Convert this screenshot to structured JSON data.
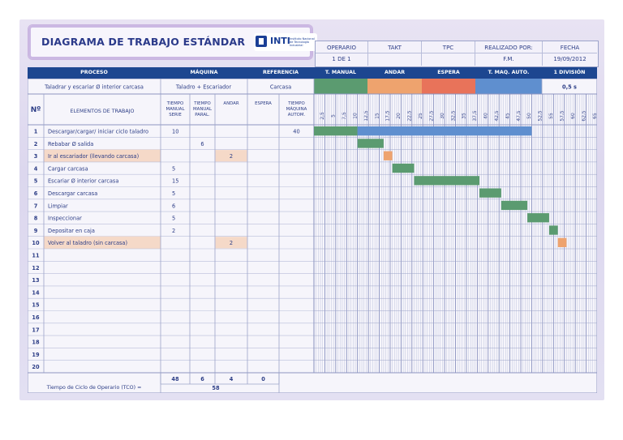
{
  "title": "DIAGRAMA DE TRABAJO ESTÁNDAR",
  "logo": {
    "name": "INTI",
    "subtitle": "Instituto Nacional de Tecnología Industrial"
  },
  "header": {
    "operario_label": "OPERARIO",
    "operario_value": "1 DE 1",
    "takt_label": "TAKT",
    "takt_value": "",
    "tpc_label": "TPC",
    "tpc_value": "",
    "realizado_label": "REALIZADO POR:",
    "realizado_value": "F.M.",
    "fecha_label": "FECHA",
    "fecha_value": "19/09/2012"
  },
  "bar": {
    "proceso": "PROCESO",
    "maquina": "MÁQUINA",
    "referencia": "REFERENCIA",
    "t_manual": "T. MANUAL",
    "andar": "ANDAR",
    "espera": "ESPERA",
    "t_maq_auto": "T. MAQ. AUTO.",
    "division": "1 DIVISIÓN"
  },
  "info": {
    "proceso_value": "Taladrar y escariar Ø interior carcasa",
    "maquina_value": "Taladro + Escariador",
    "referencia_value": "Carcasa",
    "division_value": "0,5 s"
  },
  "legend_colors": {
    "t_manual": "#5b9b70",
    "andar": "#eea36e",
    "espera": "#e8735a",
    "t_maq_auto": "#5f8fcf"
  },
  "columns": {
    "n": "Nº",
    "elementos": "ELEMENTOS DE TRABAJO",
    "tms": "TIEMPO MANUAL SERIE",
    "tmp": "TIEMPO MANUAL PARAL.",
    "andar": "ANDAR",
    "espera": "ESPERA",
    "tma": "TIEMPO MÁQUINA AUTOM."
  },
  "scale_labels": [
    "2,5",
    "5",
    "7,5",
    "10",
    "12,5",
    "15",
    "17,5",
    "20",
    "22,5",
    "25",
    "27,5",
    "30",
    "32,5",
    "35",
    "37,5",
    "40",
    "42,5",
    "45",
    "47,5",
    "50",
    "52,5",
    "55",
    "57,5",
    "60",
    "62,5",
    "65"
  ],
  "rows": [
    {
      "n": "1",
      "label": "Descargar/cargar/ iniciar ciclo taladro",
      "tms": "10",
      "tmp": "",
      "andar": "",
      "espera": "",
      "tma": "40",
      "hl": false
    },
    {
      "n": "2",
      "label": "Rebabar Ø salida",
      "tms": "",
      "tmp": "6",
      "andar": "",
      "espera": "",
      "tma": "",
      "hl": false
    },
    {
      "n": "3",
      "label": "Ir al escariador (llevando carcasa)",
      "tms": "",
      "tmp": "",
      "andar": "2",
      "espera": "",
      "tma": "",
      "hl": true
    },
    {
      "n": "4",
      "label": "Cargar carcasa",
      "tms": "5",
      "tmp": "",
      "andar": "",
      "espera": "",
      "tma": "",
      "hl": false
    },
    {
      "n": "5",
      "label": "Escariar Ø interior carcasa",
      "tms": "15",
      "tmp": "",
      "andar": "",
      "espera": "",
      "tma": "",
      "hl": false
    },
    {
      "n": "6",
      "label": "Descargar carcasa",
      "tms": "5",
      "tmp": "",
      "andar": "",
      "espera": "",
      "tma": "",
      "hl": false
    },
    {
      "n": "7",
      "label": "Limpiar",
      "tms": "6",
      "tmp": "",
      "andar": "",
      "espera": "",
      "tma": "",
      "hl": false
    },
    {
      "n": "8",
      "label": "Inspeccionar",
      "tms": "5",
      "tmp": "",
      "andar": "",
      "espera": "",
      "tma": "",
      "hl": false
    },
    {
      "n": "9",
      "label": "Depositar en caja",
      "tms": "2",
      "tmp": "",
      "andar": "",
      "espera": "",
      "tma": "",
      "hl": false
    },
    {
      "n": "10",
      "label": "Volver al taladro (sin carcasa)",
      "tms": "",
      "tmp": "",
      "andar": "2",
      "espera": "",
      "tma": "",
      "hl": true
    },
    {
      "n": "11",
      "label": "",
      "tms": "",
      "tmp": "",
      "andar": "",
      "espera": "",
      "tma": "",
      "hl": false
    },
    {
      "n": "12",
      "label": "",
      "tms": "",
      "tmp": "",
      "andar": "",
      "espera": "",
      "tma": "",
      "hl": false
    },
    {
      "n": "13",
      "label": "",
      "tms": "",
      "tmp": "",
      "andar": "",
      "espera": "",
      "tma": "",
      "hl": false
    },
    {
      "n": "14",
      "label": "",
      "tms": "",
      "tmp": "",
      "andar": "",
      "espera": "",
      "tma": "",
      "hl": false
    },
    {
      "n": "15",
      "label": "",
      "tms": "",
      "tmp": "",
      "andar": "",
      "espera": "",
      "tma": "",
      "hl": false
    },
    {
      "n": "16",
      "label": "",
      "tms": "",
      "tmp": "",
      "andar": "",
      "espera": "",
      "tma": "",
      "hl": false
    },
    {
      "n": "17",
      "label": "",
      "tms": "",
      "tmp": "",
      "andar": "",
      "espera": "",
      "tma": "",
      "hl": false
    },
    {
      "n": "18",
      "label": "",
      "tms": "",
      "tmp": "",
      "andar": "",
      "espera": "",
      "tma": "",
      "hl": false
    },
    {
      "n": "19",
      "label": "",
      "tms": "",
      "tmp": "",
      "andar": "",
      "espera": "",
      "tma": "",
      "hl": false
    },
    {
      "n": "20",
      "label": "",
      "tms": "",
      "tmp": "",
      "andar": "",
      "espera": "",
      "tma": "",
      "hl": false
    }
  ],
  "totals": {
    "tms": "48",
    "tmp": "6",
    "andar": "4",
    "espera": "0"
  },
  "tco": {
    "label": "Tiempo de Ciclo de Operario (TCO) =",
    "value": "58"
  },
  "bars": [
    {
      "row": 1,
      "start": 0,
      "end": 10,
      "type": "t_manual"
    },
    {
      "row": 1,
      "start": 10,
      "end": 50,
      "type": "t_maq_auto"
    },
    {
      "row": 2,
      "start": 10,
      "end": 16,
      "type": "t_manual"
    },
    {
      "row": 3,
      "start": 16,
      "end": 18,
      "type": "andar"
    },
    {
      "row": 4,
      "start": 18,
      "end": 23,
      "type": "t_manual"
    },
    {
      "row": 5,
      "start": 23,
      "end": 38,
      "type": "t_manual"
    },
    {
      "row": 6,
      "start": 38,
      "end": 43,
      "type": "t_manual"
    },
    {
      "row": 7,
      "start": 43,
      "end": 49,
      "type": "t_manual"
    },
    {
      "row": 8,
      "start": 49,
      "end": 54,
      "type": "t_manual"
    },
    {
      "row": 9,
      "start": 54,
      "end": 56,
      "type": "t_manual"
    },
    {
      "row": 10,
      "start": 56,
      "end": 58,
      "type": "andar"
    }
  ],
  "scale_max": 65
}
